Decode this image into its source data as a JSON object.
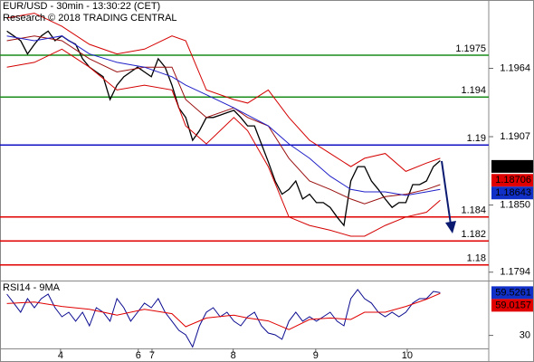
{
  "chart_data": {
    "type": "line",
    "title": "EUR/USD - 30min - 13:30:22 (CET)",
    "subtitle": "Research © 2018 TRADING CENTRAL",
    "xlim": [
      0,
      71.05
    ],
    "xticks": [
      {
        "value": 8.8,
        "label": "4"
      },
      {
        "value": 20.1,
        "label": "6"
      },
      {
        "value": 22.1,
        "label": "7"
      },
      {
        "value": 33.9,
        "label": "8"
      },
      {
        "value": 45.9,
        "label": "9"
      },
      {
        "value": 59.2,
        "label": "10"
      }
    ],
    "ylim": [
      1.1787,
      1.2021
    ],
    "yticks": [
      1.1964,
      1.1907,
      {
        "value": 1.185,
        "label": "1.1850"
      },
      1.1794
    ],
    "x": [
      1,
      2,
      3,
      4,
      5,
      6,
      7,
      8,
      9,
      10,
      11,
      12,
      13,
      14,
      15,
      16,
      17,
      18,
      19,
      20,
      21,
      22,
      23,
      24,
      25,
      26,
      27,
      28,
      29,
      30,
      31,
      32,
      33,
      34,
      35,
      36,
      37,
      38,
      39,
      40,
      41,
      42,
      43,
      44,
      45,
      46,
      47,
      48,
      49,
      50,
      51,
      52,
      53,
      54,
      55,
      56,
      57,
      58,
      59,
      60,
      61,
      62,
      63,
      64
    ],
    "series": [
      {
        "color": "#000000",
        "values": [
          1.1995,
          1.1991,
          1.1987,
          1.1976,
          1.1984,
          1.1991,
          1.1995,
          1.1987,
          1.1991,
          1.1987,
          1.1984,
          1.1972,
          1.1965,
          1.1961,
          1.1957,
          1.1938,
          1.195,
          1.1957,
          1.1961,
          1.1965,
          1.1961,
          1.1957,
          1.1972,
          1.1965,
          1.195,
          1.1931,
          1.1923,
          1.1904,
          1.1912,
          1.1923,
          1.1923,
          1.1925,
          1.1927,
          1.1929,
          1.1923,
          1.1916,
          1.1916,
          1.1901,
          1.1886,
          1.187,
          1.1859,
          1.1863,
          1.187,
          1.1855,
          1.1859,
          1.1852,
          1.1852,
          1.1848,
          1.184,
          1.1833,
          1.187,
          1.1882,
          1.1882,
          1.187,
          1.1863,
          1.1855,
          1.1848,
          1.1852,
          1.1852,
          1.1867,
          1.1867,
          1.187,
          1.1882,
          1.1887
        ]
      },
      {
        "color": "#d40000",
        "x": [
          1,
          5,
          9,
          13,
          17,
          21,
          25,
          27,
          30,
          34,
          36,
          39,
          42,
          45,
          48,
          51,
          53,
          56,
          59,
          62,
          64
        ],
        "values": [
          1.2006,
          1.201,
          1.1999,
          1.1984,
          1.1976,
          1.198,
          1.1991,
          1.1987,
          1.1946,
          1.1938,
          1.1935,
          1.1946,
          1.1923,
          1.1904,
          1.1893,
          1.1882,
          1.1889,
          1.1893,
          1.1878,
          1.1885,
          1.1889
        ]
      },
      {
        "color": "#d40000",
        "x": [
          1,
          5,
          9,
          13,
          17,
          21,
          25,
          27,
          30,
          34,
          36,
          39,
          42,
          45,
          48,
          51,
          53,
          56,
          59,
          62,
          64
        ],
        "values": [
          1.1965,
          1.1969,
          1.198,
          1.1965,
          1.1946,
          1.195,
          1.1946,
          1.1916,
          1.1901,
          1.1923,
          1.1912,
          1.1882,
          1.184,
          1.1833,
          1.1829,
          1.1824,
          1.1824,
          1.1833,
          1.184,
          1.1844,
          1.1854
        ]
      },
      {
        "color": "#9a1010",
        "x": [
          1,
          5,
          9,
          13,
          17,
          21,
          25,
          27,
          30,
          34,
          36,
          39,
          42,
          45,
          48,
          51,
          53,
          56,
          59,
          62,
          64
        ],
        "values": [
          1.1987,
          1.1991,
          1.1987,
          1.1972,
          1.1961,
          1.1965,
          1.1965,
          1.1938,
          1.1923,
          1.1931,
          1.1923,
          1.1916,
          1.1889,
          1.187,
          1.1863,
          1.1855,
          1.1851,
          1.1857,
          1.1859,
          1.1863,
          1.1867
        ]
      },
      {
        "color": "#2020c8",
        "x": [
          1,
          5,
          9,
          13,
          17,
          21,
          25,
          27,
          30,
          34,
          36,
          39,
          42,
          45,
          48,
          51,
          53,
          56,
          59,
          62,
          64
        ],
        "values": [
          1.1991,
          1.1987,
          1.1991,
          1.1976,
          1.1969,
          1.1965,
          1.1957,
          1.195,
          1.1942,
          1.1931,
          1.1925,
          1.1916,
          1.1901,
          1.1889,
          1.1874,
          1.1863,
          1.1861,
          1.1861,
          1.1858,
          1.1861,
          1.1863
        ]
      }
    ],
    "levels": [
      {
        "value": 1.1975,
        "color": "#1a8c1a"
      },
      {
        "value": 1.194,
        "color": "#1a8c1a"
      },
      {
        "value": 1.19,
        "color": "#1010c0"
      },
      {
        "value": 1.184,
        "color": "#e00000"
      },
      {
        "value": 1.182,
        "color": "#e00000"
      },
      {
        "value": 1.18,
        "color": "#e00000"
      }
    ],
    "price_tags": [
      {
        "value": 1.18822,
        "color": "#000000"
      },
      {
        "value": 1.18706,
        "color": "#e00000"
      },
      {
        "value": 1.18643,
        "color": "#1030c8"
      }
    ],
    "rsi": {
      "title": "RSI14 - 9MA",
      "ylim": [
        21,
        66
      ],
      "yticks": [
        30
      ],
      "series": [
        {
          "color": "#0a0a90",
          "values": [
            58.5,
            52.3,
            46,
            55.4,
            49.1,
            55.4,
            58.5,
            49.1,
            42.9,
            46,
            39.8,
            46,
            36.6,
            49.1,
            46,
            39.8,
            55.4,
            49.1,
            39.8,
            46,
            52.3,
            49.1,
            55.4,
            46,
            39.8,
            33.5,
            30.4,
            22,
            36.6,
            46,
            49.1,
            42.9,
            46,
            39.8,
            36.6,
            42.9,
            46,
            36.6,
            31.6,
            30.4,
            27.3,
            39.8,
            46,
            39.8,
            42.9,
            39.8,
            42.9,
            46,
            39.8,
            36.6,
            55.4,
            61.6,
            55.4,
            52.3,
            46,
            42.9,
            46,
            42.9,
            46,
            52.3,
            55.4,
            55.4,
            60.4,
            59.5
          ]
        },
        {
          "color": "#e00000",
          "x": [
            1,
            5,
            9,
            13,
            17,
            21,
            25,
            27,
            30,
            34,
            36,
            39,
            42,
            45,
            48,
            51,
            53,
            56,
            59,
            62,
            64
          ],
          "values": [
            52,
            53,
            50,
            48,
            44,
            48,
            45,
            36,
            42,
            44,
            42,
            40,
            34,
            41,
            42,
            41,
            46,
            46,
            50,
            55,
            59
          ]
        }
      ],
      "tags": [
        {
          "value": 59.5261,
          "color": "#1030c8"
        },
        {
          "value": 59.0157,
          "color": "#e00000"
        }
      ]
    }
  }
}
